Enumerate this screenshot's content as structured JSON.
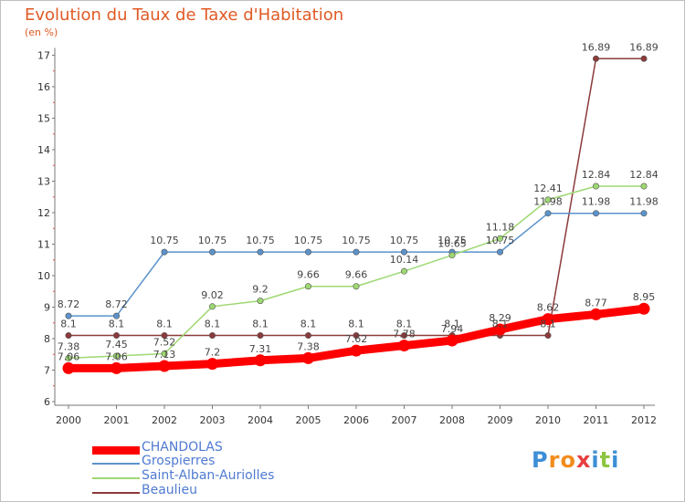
{
  "chart_data": {
    "type": "line",
    "title": "Evolution du Taux de Taxe d'Habitation",
    "unit_label": "(en %)",
    "x": [
      "2000",
      "2001",
      "2002",
      "2003",
      "2004",
      "2005",
      "2006",
      "2007",
      "2008",
      "2009",
      "2010",
      "2011",
      "2012"
    ],
    "ylim": [
      6,
      17
    ],
    "yticks": [
      6,
      7,
      8,
      9,
      10,
      11,
      12,
      13,
      14,
      15,
      16,
      17
    ],
    "grid": false,
    "legend_position": "bottom-left",
    "series": [
      {
        "name": "CHANDOLAS",
        "color": "#ff0000",
        "values": [
          7.06,
          7.06,
          7.13,
          7.2,
          7.31,
          7.38,
          7.62,
          7.78,
          7.94,
          8.29,
          8.62,
          8.77,
          8.95
        ],
        "labels": [
          "7.06",
          "7.06",
          "7.13",
          "7.2",
          "7.31",
          "7.38",
          "7.62",
          "7.78",
          "7.94",
          "8.29",
          "8.62",
          "8.77",
          "8.95"
        ]
      },
      {
        "name": "Grospierres",
        "color": "#5b93cc",
        "values": [
          8.72,
          8.72,
          10.75,
          10.75,
          10.75,
          10.75,
          10.75,
          10.75,
          10.75,
          10.75,
          11.98,
          11.98,
          11.98
        ],
        "labels": [
          "8.72",
          "8.72",
          "10.75",
          "10.75",
          "10.75",
          "10.75",
          "10.75",
          "10.75",
          "10.75",
          "10.75",
          "11.98",
          "11.98",
          "11.98"
        ]
      },
      {
        "name": "Saint-Alban-Auriolles",
        "color": "#9ed872",
        "values": [
          7.38,
          7.45,
          7.52,
          9.02,
          9.2,
          9.66,
          9.66,
          10.14,
          10.65,
          11.18,
          12.41,
          12.84,
          12.84
        ],
        "labels": [
          "7.38",
          "7.45",
          "7.52",
          "9.02",
          "9.2",
          "9.66",
          "9.66",
          "10.14",
          "10.65",
          "11.18",
          "12.41",
          "12.84",
          "12.84"
        ]
      },
      {
        "name": "Beaulieu",
        "color": "#8c3a3a",
        "values": [
          8.1,
          8.1,
          8.1,
          8.1,
          8.1,
          8.1,
          8.1,
          8.1,
          8.1,
          8.1,
          8.1,
          16.89,
          16.89
        ],
        "labels": [
          "8.1",
          "8.1",
          "8.1",
          "8.1",
          "8.1",
          "8.1",
          "8.1",
          "8.1",
          "8.1",
          "8.1",
          "8.1",
          "16.89",
          "16.89"
        ]
      }
    ]
  },
  "legend": {
    "items": [
      "CHANDOLAS",
      "Grospierres",
      "Saint-Alban-Auriolles",
      "Beaulieu"
    ]
  },
  "logo": {
    "text": "Proxiti",
    "letters": [
      "P",
      "r",
      "o",
      "x",
      "i",
      "t",
      "i"
    ],
    "colors": [
      "#3d8fd6",
      "#f28c1e",
      "#f28c1e",
      "#e63f3f",
      "#3d8fd6",
      "#8cc63f",
      "#3d8fd6"
    ]
  }
}
